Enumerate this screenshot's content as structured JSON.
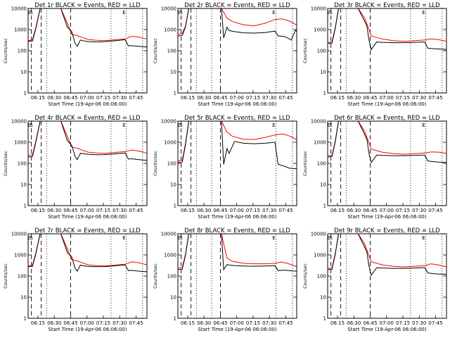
{
  "chart_data": [
    {
      "type": "line",
      "title": "Det 1r BLACK = Events, RED = LLD",
      "xlabel": "Start Time (19-Apr-06 06:06:00)",
      "ylabel": "Counts/sec",
      "yscale": "log",
      "ylim": [
        1,
        10000
      ],
      "xticklabels": [
        "06:15",
        "06:30",
        "06:45",
        "07:00",
        "07:15",
        "07:30",
        "07:45"
      ],
      "yticklabels": [
        "1",
        "10",
        "100",
        "1000",
        "10000"
      ],
      "markers": [
        "E",
        "S",
        "E"
      ],
      "series": [
        {
          "color": "#000000",
          "x": [
            0,
            4,
            7,
            11,
            16,
            30,
            36,
            40,
            43,
            45,
            48,
            50,
            55,
            63,
            70,
            78,
            89,
            92,
            95,
            97,
            102,
            109
          ],
          "y": [
            280,
            290,
            1100,
            13000,
            10000,
            10000,
            1300,
            800,
            230,
            160,
            320,
            300,
            270,
            260,
            270,
            290,
            330,
            170,
            175,
            170,
            160,
            150
          ]
        },
        {
          "color": "#ff0000",
          "x": [
            0,
            4,
            7,
            11,
            16,
            30,
            36,
            40,
            45,
            50,
            55,
            63,
            70,
            78,
            89,
            95,
            102,
            109
          ],
          "y": [
            300,
            330,
            1200,
            13000,
            10000,
            10000,
            2000,
            600,
            520,
            420,
            340,
            310,
            300,
            320,
            360,
            480,
            440,
            360
          ]
        }
      ]
    },
    {
      "type": "line",
      "title": "Det 2r BLACK = Events, RED = LLD",
      "xlabel": "Start Time (19-Apr-06 06:06:00)",
      "ylabel": "Counts/sec",
      "yscale": "log",
      "ylim": [
        1,
        10000
      ],
      "xticklabels": [
        "06:15",
        "06:30",
        "06:45",
        "07:00",
        "07:15",
        "07:30",
        "07:45"
      ],
      "yticklabels": [
        "1",
        "10",
        "100",
        "1000",
        "10000"
      ],
      "markers": [
        "E",
        "S",
        "E"
      ],
      "series": [
        {
          "color": "#000000",
          "x": [
            0,
            4,
            7,
            10,
            12,
            14,
            40,
            42,
            45,
            47,
            52,
            60,
            70,
            80,
            89,
            92,
            97,
            100,
            104,
            108,
            109
          ],
          "y": [
            500,
            520,
            1400,
            10000,
            10000,
            10000,
            10000,
            400,
            1300,
            900,
            800,
            700,
            680,
            720,
            850,
            500,
            480,
            420,
            320,
            950,
            800
          ]
        },
        {
          "color": "#ff0000",
          "x": [
            0,
            4,
            7,
            10,
            12,
            14,
            40,
            45,
            50,
            60,
            70,
            80,
            89,
            95,
            100,
            105,
            109
          ],
          "y": [
            600,
            650,
            1500,
            10000,
            10000,
            10000,
            10000,
            3500,
            2400,
            1700,
            1500,
            2000,
            3000,
            3200,
            2800,
            2200,
            1600
          ]
        }
      ]
    },
    {
      "type": "line",
      "title": "Det 3r BLACK = Events, RED = LLD",
      "xlabel": "Start Time (19-Apr-06 06:06:00)",
      "ylabel": "Counts/sec",
      "yscale": "log",
      "ylim": [
        1,
        10000
      ],
      "xticklabels": [
        "06:15",
        "06:30",
        "06:45",
        "07:00",
        "07:15",
        "07:30",
        "07:45"
      ],
      "yticklabels": [
        "1",
        "10",
        "100",
        "1000",
        "10000"
      ],
      "markers": [
        "E",
        "S",
        "E"
      ],
      "series": [
        {
          "color": "#000000",
          "x": [
            0,
            4,
            7,
            10,
            16,
            28,
            36,
            38,
            40,
            42,
            45,
            50,
            60,
            70,
            80,
            89,
            92,
            97,
            102,
            109
          ],
          "y": [
            220,
            230,
            1200,
            13000,
            10000,
            10000,
            1500,
            300,
            110,
            160,
            260,
            250,
            240,
            240,
            250,
            260,
            130,
            125,
            120,
            115
          ]
        },
        {
          "color": "#ff0000",
          "x": [
            0,
            4,
            7,
            10,
            16,
            28,
            34,
            38,
            40,
            45,
            50,
            60,
            70,
            80,
            89,
            95,
            102,
            109
          ],
          "y": [
            250,
            260,
            1300,
            13000,
            10000,
            10000,
            3500,
            1000,
            500,
            420,
            360,
            300,
            280,
            300,
            320,
            360,
            330,
            280
          ]
        }
      ]
    },
    {
      "type": "line",
      "title": "Det 4r BLACK = Events, RED = LLD",
      "xlabel": "Start Time (19-Apr-06 06:06:00)",
      "ylabel": "Counts/sec",
      "yscale": "log",
      "ylim": [
        1,
        10000
      ],
      "xticklabels": [
        "06:15",
        "06:30",
        "06:45",
        "07:00",
        "07:15",
        "07:30",
        "07:45"
      ],
      "yticklabels": [
        "1",
        "10",
        "100",
        "1000",
        "10000"
      ],
      "markers": [
        "E",
        "S",
        "E"
      ],
      "series": [
        {
          "color": "#000000",
          "x": [
            0,
            4,
            7,
            11,
            16,
            30,
            36,
            40,
            43,
            45,
            48,
            50,
            55,
            63,
            70,
            78,
            89,
            92,
            95,
            97,
            102,
            109
          ],
          "y": [
            200,
            210,
            1000,
            12000,
            10000,
            10000,
            1200,
            700,
            220,
            150,
            300,
            290,
            270,
            255,
            260,
            275,
            310,
            160,
            165,
            160,
            150,
            140
          ]
        },
        {
          "color": "#ff0000",
          "x": [
            0,
            4,
            7,
            11,
            16,
            30,
            36,
            40,
            45,
            50,
            55,
            63,
            70,
            78,
            89,
            95,
            102,
            109
          ],
          "y": [
            230,
            260,
            1100,
            12000,
            10000,
            10000,
            1900,
            600,
            520,
            420,
            340,
            310,
            300,
            320,
            360,
            430,
            380,
            300
          ]
        }
      ]
    },
    {
      "type": "line",
      "title": "Det 5r BLACK = Events, RED = LLD",
      "xlabel": "Start Time (19-Apr-06 06:06:00)",
      "ylabel": "Counts/sec",
      "yscale": "log",
      "ylim": [
        1,
        10000
      ],
      "xticklabels": [
        "06:15",
        "06:30",
        "06:45",
        "07:00",
        "07:15",
        "07:30",
        "07:45"
      ],
      "yticklabels": [
        "1",
        "10",
        "100",
        "1000",
        "10000"
      ],
      "markers": [
        "E",
        "S",
        "E"
      ],
      "series": [
        {
          "color": "#000000",
          "x": [
            0,
            4,
            7,
            10,
            12,
            14,
            40,
            42,
            45,
            47,
            52,
            60,
            70,
            80,
            89,
            92,
            97,
            102,
            109
          ],
          "y": [
            110,
            115,
            800,
            10000,
            10000,
            10000,
            10000,
            90,
            500,
            300,
            1100,
            900,
            850,
            900,
            1000,
            90,
            75,
            60,
            55
          ]
        },
        {
          "color": "#ff0000",
          "x": [
            0,
            4,
            7,
            10,
            12,
            14,
            40,
            45,
            50,
            60,
            70,
            80,
            89,
            95,
            100,
            105,
            109
          ],
          "y": [
            130,
            140,
            900,
            10000,
            10000,
            10000,
            10000,
            3000,
            1900,
            1400,
            1350,
            1700,
            2200,
            2500,
            2200,
            1700,
            1300
          ]
        }
      ]
    },
    {
      "type": "line",
      "title": "Det 6r BLACK = Events, RED = LLD",
      "xlabel": "Start Time (19-Apr-06 06:06:00)",
      "ylabel": "Counts/sec",
      "yscale": "log",
      "ylim": [
        1,
        10000
      ],
      "xticklabels": [
        "06:15",
        "06:30",
        "06:45",
        "07:00",
        "07:15",
        "07:30",
        "07:45"
      ],
      "yticklabels": [
        "1",
        "10",
        "100",
        "1000",
        "10000"
      ],
      "markers": [
        "E",
        "S",
        "E"
      ],
      "series": [
        {
          "color": "#000000",
          "x": [
            0,
            4,
            7,
            10,
            16,
            28,
            36,
            38,
            40,
            42,
            45,
            50,
            60,
            70,
            80,
            89,
            92,
            97,
            102,
            109
          ],
          "y": [
            200,
            210,
            1100,
            12000,
            10000,
            10000,
            1400,
            280,
            110,
            150,
            250,
            240,
            230,
            230,
            240,
            250,
            130,
            120,
            115,
            110
          ]
        },
        {
          "color": "#ff0000",
          "x": [
            0,
            4,
            7,
            10,
            16,
            28,
            34,
            38,
            40,
            45,
            50,
            60,
            70,
            80,
            89,
            95,
            102,
            109
          ],
          "y": [
            230,
            240,
            1200,
            12000,
            10000,
            10000,
            3200,
            900,
            480,
            400,
            340,
            290,
            270,
            290,
            310,
            350,
            340,
            300
          ]
        }
      ]
    },
    {
      "type": "line",
      "title": "Det 7r BLACK = Events, RED = LLD",
      "xlabel": "Start Time (19-Apr-06 06:06:00)",
      "ylabel": "Counts/sec",
      "yscale": "log",
      "ylim": [
        1,
        10000
      ],
      "xticklabels": [
        "06:15",
        "06:30",
        "06:45",
        "07:00",
        "07:15",
        "07:30",
        "07:45"
      ],
      "yticklabels": [
        "1",
        "10",
        "100",
        "1000",
        "10000"
      ],
      "markers": [
        "E",
        "S",
        "E"
      ],
      "series": [
        {
          "color": "#000000",
          "x": [
            0,
            4,
            7,
            11,
            16,
            30,
            36,
            40,
            43,
            45,
            48,
            50,
            55,
            63,
            70,
            78,
            89,
            92,
            95,
            97,
            102,
            109
          ],
          "y": [
            280,
            290,
            1100,
            13000,
            10000,
            10000,
            1300,
            800,
            240,
            170,
            330,
            310,
            285,
            275,
            280,
            300,
            340,
            180,
            185,
            180,
            170,
            160
          ]
        },
        {
          "color": "#ff0000",
          "x": [
            0,
            4,
            7,
            11,
            16,
            30,
            36,
            40,
            45,
            50,
            55,
            63,
            70,
            78,
            89,
            95,
            102,
            109
          ],
          "y": [
            300,
            330,
            1200,
            13000,
            10000,
            10000,
            2000,
            600,
            520,
            420,
            340,
            310,
            300,
            320,
            360,
            470,
            420,
            340
          ]
        }
      ]
    },
    {
      "type": "line",
      "title": "Det 8r BLACK = Events, RED = LLD",
      "xlabel": "Start Time (19-Apr-06 06:06:00)",
      "ylabel": "Counts/sec",
      "yscale": "log",
      "ylim": [
        1,
        10000
      ],
      "xticklabels": [
        "06:15",
        "06:30",
        "06:45",
        "07:00",
        "07:15",
        "07:30",
        "07:45"
      ],
      "yticklabels": [
        "1",
        "10",
        "100",
        "1000",
        "10000"
      ],
      "markers": [
        "E",
        "S",
        "E"
      ],
      "series": [
        {
          "color": "#000000",
          "x": [
            0,
            4,
            7,
            10,
            12,
            14,
            40,
            42,
            45,
            47,
            52,
            60,
            70,
            80,
            89,
            92,
            97,
            102,
            109
          ],
          "y": [
            200,
            210,
            1000,
            10000,
            10000,
            10000,
            10000,
            200,
            350,
            330,
            310,
            300,
            290,
            300,
            310,
            180,
            190,
            180,
            170
          ]
        },
        {
          "color": "#ff0000",
          "x": [
            0,
            4,
            7,
            10,
            12,
            14,
            40,
            45,
            50,
            60,
            70,
            80,
            89,
            95,
            100,
            105,
            109
          ],
          "y": [
            230,
            250,
            1100,
            10000,
            10000,
            10000,
            10000,
            700,
            500,
            400,
            380,
            380,
            400,
            460,
            400,
            330,
            280
          ]
        }
      ]
    },
    {
      "type": "line",
      "title": "Det 9r BLACK = Events, RED = LLD",
      "xlabel": "Start Time (19-Apr-06 06:06:00)",
      "ylabel": "Counts/sec",
      "yscale": "log",
      "ylim": [
        1,
        10000
      ],
      "xticklabels": [
        "06:15",
        "06:30",
        "06:45",
        "07:00",
        "07:15",
        "07:30",
        "07:45"
      ],
      "yticklabels": [
        "1",
        "10",
        "100",
        "1000",
        "10000"
      ],
      "markers": [
        "E",
        "S",
        "E"
      ],
      "series": [
        {
          "color": "#000000",
          "x": [
            0,
            4,
            7,
            10,
            16,
            28,
            36,
            38,
            40,
            42,
            45,
            50,
            60,
            70,
            80,
            89,
            92,
            97,
            102,
            109
          ],
          "y": [
            200,
            210,
            1100,
            12000,
            10000,
            10000,
            1400,
            280,
            110,
            150,
            250,
            240,
            230,
            230,
            240,
            250,
            140,
            130,
            125,
            120
          ]
        },
        {
          "color": "#ff0000",
          "x": [
            0,
            4,
            7,
            10,
            16,
            28,
            34,
            38,
            40,
            45,
            50,
            60,
            70,
            80,
            89,
            95,
            102,
            109
          ],
          "y": [
            230,
            240,
            1200,
            12000,
            10000,
            10000,
            3200,
            900,
            480,
            400,
            340,
            290,
            270,
            290,
            310,
            380,
            330,
            270
          ]
        }
      ]
    }
  ]
}
